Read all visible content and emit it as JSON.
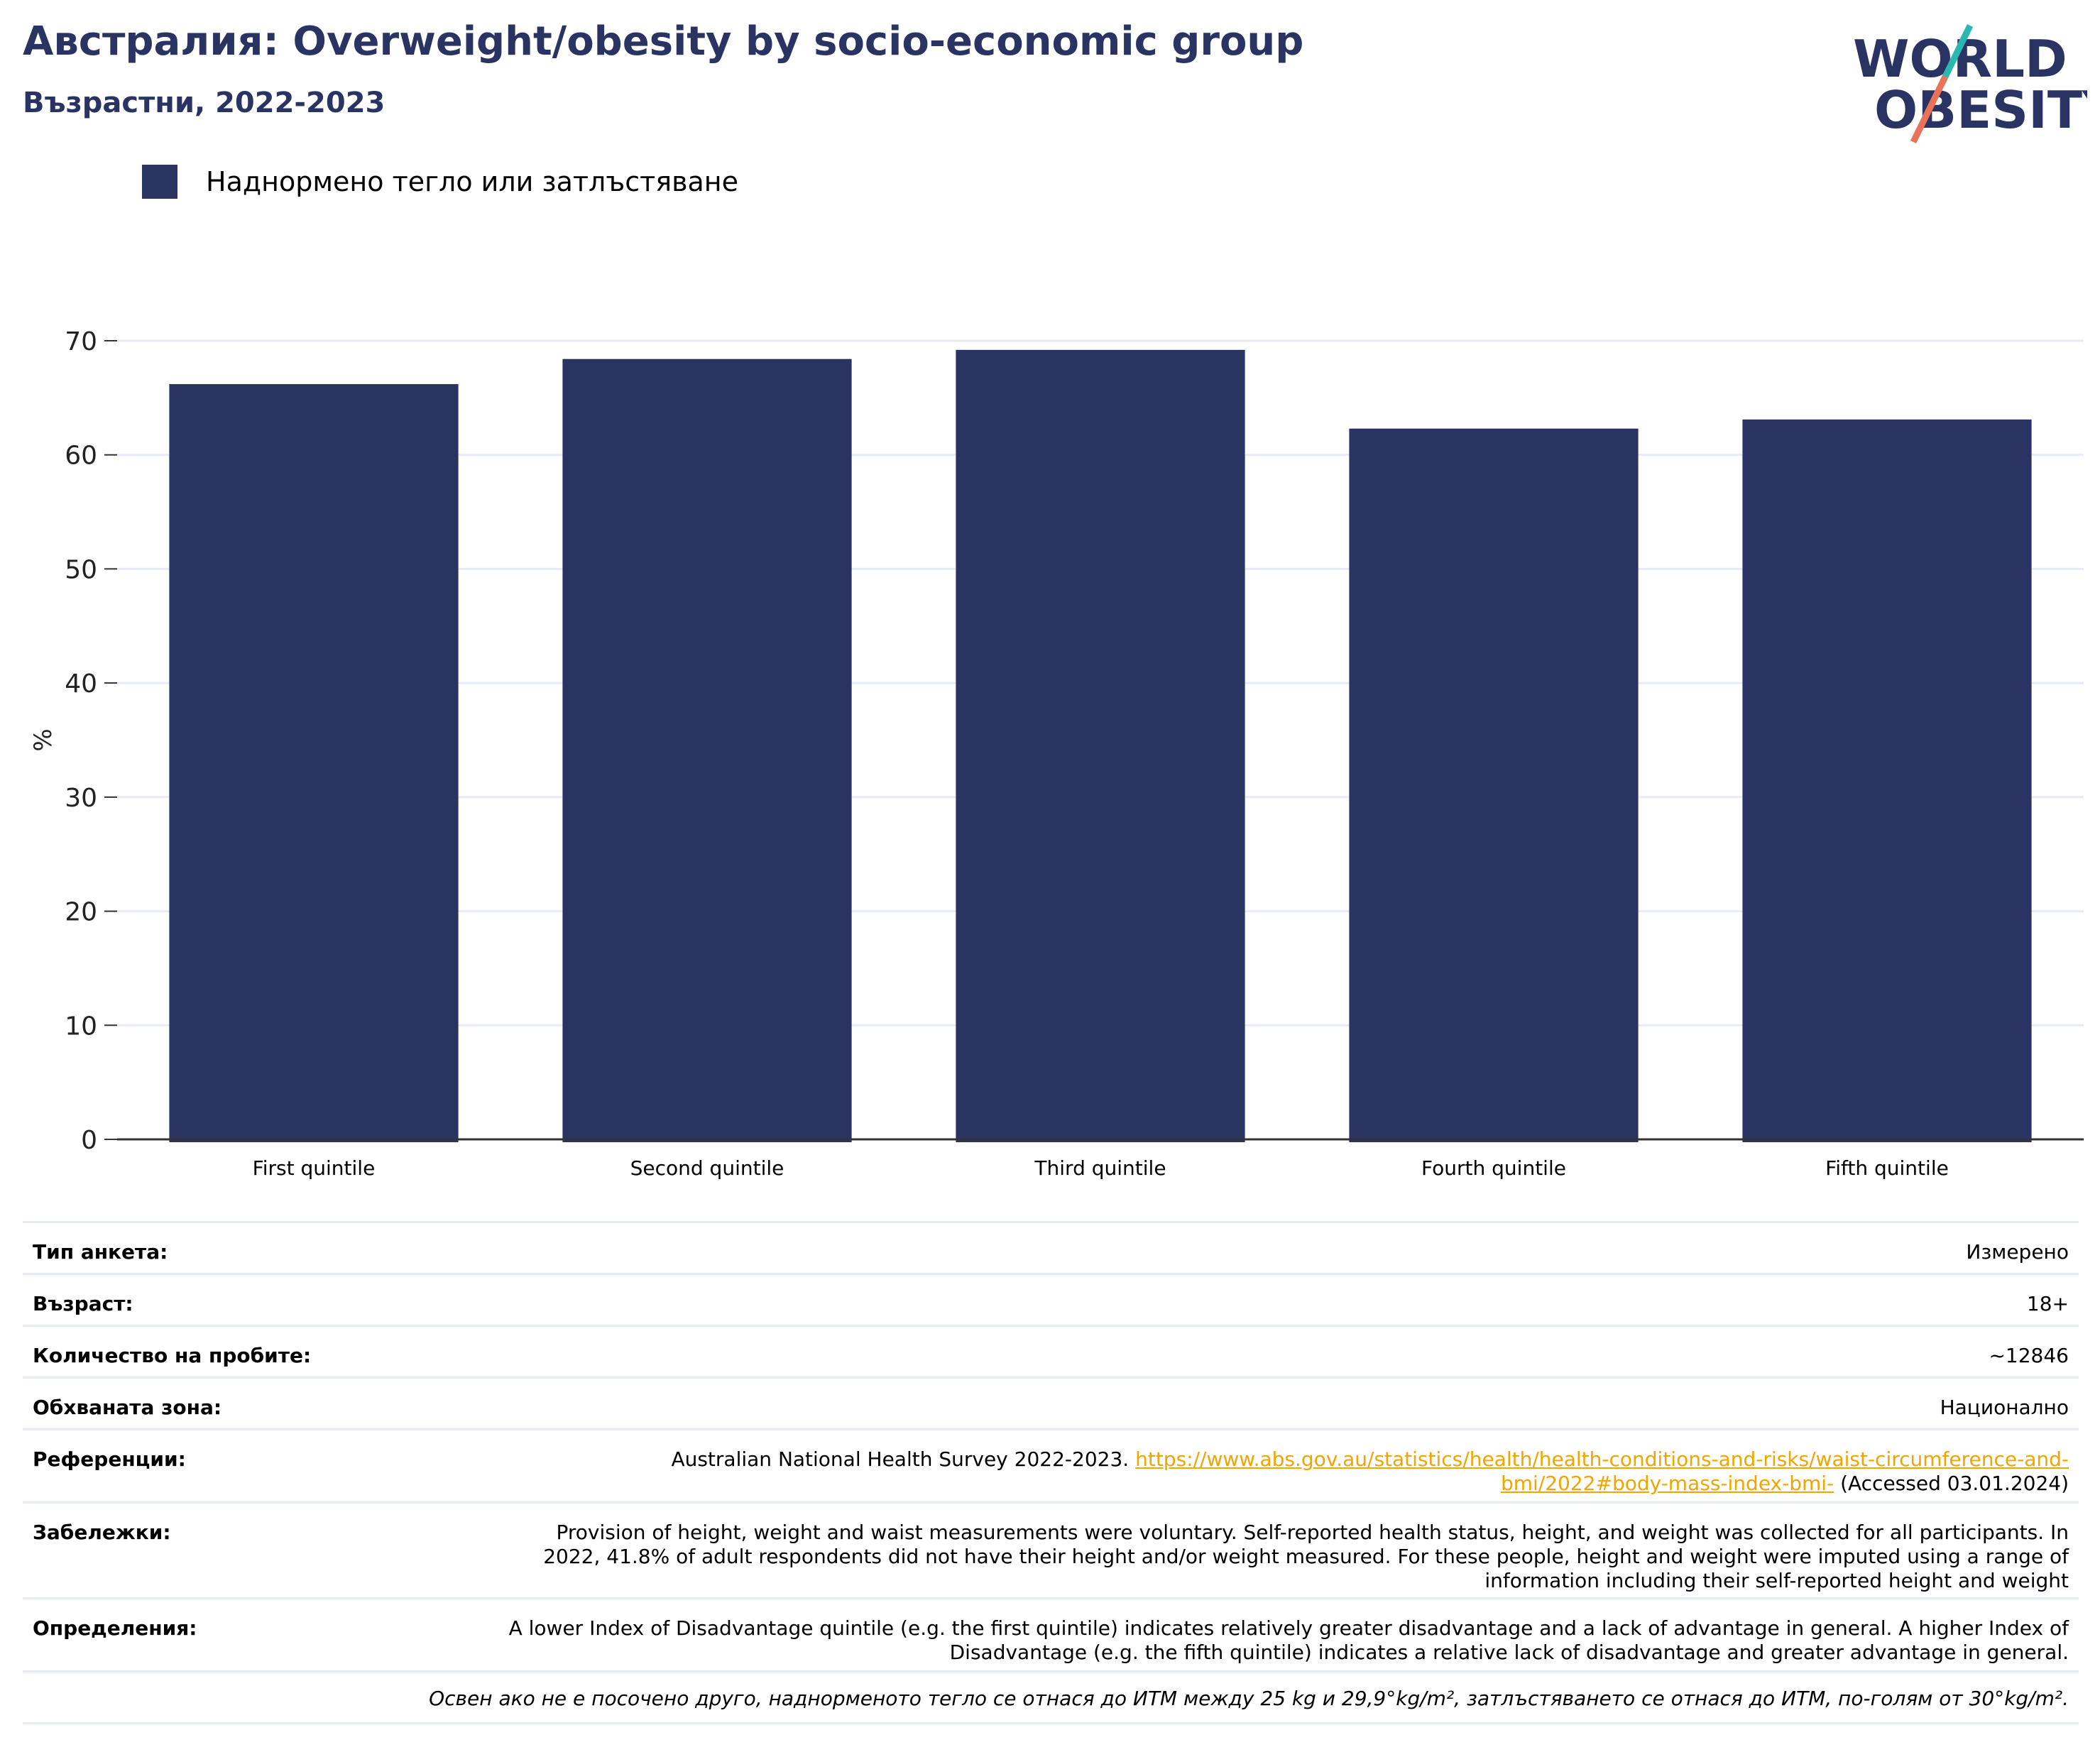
{
  "header": {
    "title": "Австралия: Overweight/obesity by socio-economic group",
    "subtitle": "Възрастни, 2022-2023"
  },
  "logo": {
    "line1": "WORLD",
    "line2": "OBESITY"
  },
  "legend": {
    "label": "Наднормено тегло или затлъстяване",
    "color": "#293462"
  },
  "chart_data": {
    "type": "bar",
    "categories": [
      "First quintile",
      "Second quintile",
      "Third quintile",
      "Fourth quintile",
      "Fifth quintile"
    ],
    "series": [
      {
        "name": "Наднормено тегло или затлъстяване",
        "values": [
          66.2,
          68.4,
          69.2,
          62.3,
          63.1
        ],
        "color": "#293462"
      }
    ],
    "ylabel": "%",
    "ylim": [
      0,
      70
    ],
    "yticks": [
      0,
      10,
      20,
      30,
      40,
      50,
      60,
      70
    ],
    "grid": true
  },
  "info": {
    "survey_type": {
      "label": "Тип анкета:",
      "value": "Измерено"
    },
    "age": {
      "label": "Възраст:",
      "value": "18+"
    },
    "sample_size": {
      "label": "Количество на пробите:",
      "value": "~12846"
    },
    "coverage": {
      "label": "Обхваната зона:",
      "value": "Национално"
    },
    "references": {
      "label": "Референции:",
      "text_before": "Australian National Health Survey 2022-2023.",
      "link_line1": "https://www.abs.gov.au/statistics/health/health-conditions-and-risks/waist-circumference-and-",
      "link_line2": "bmi/2022#body-mass-index-bmi-",
      "text_after": "(Accessed 03.01.2024)"
    },
    "notes": {
      "label": "Забележки:",
      "value": "Provision of height, weight and waist measurements were voluntary. Self-reported health status, height, and weight was collected for all participants. In 2022, 41.8% of adult respondents did not have their height and/or weight measured. For these people, height and weight were imputed using a range of information including their self-reported height and weight"
    },
    "definitions": {
      "label": "Определения:",
      "value": "A lower Index of Disadvantage quintile (e.g. the first quintile) indicates relatively greater disadvantage and a lack of advantage in general. A higher Index of Disadvantage (e.g. the fifth quintile) indicates a relative lack of disadvantage and greater advantage in general."
    },
    "footnote": "Освен ако не е посочено друго, наднорменото тегло се отнася до ИТМ между 25 kg и 29,9°kg/m², затлъстяването се отнася до ИТМ, по-голям от 30°kg/m²."
  }
}
